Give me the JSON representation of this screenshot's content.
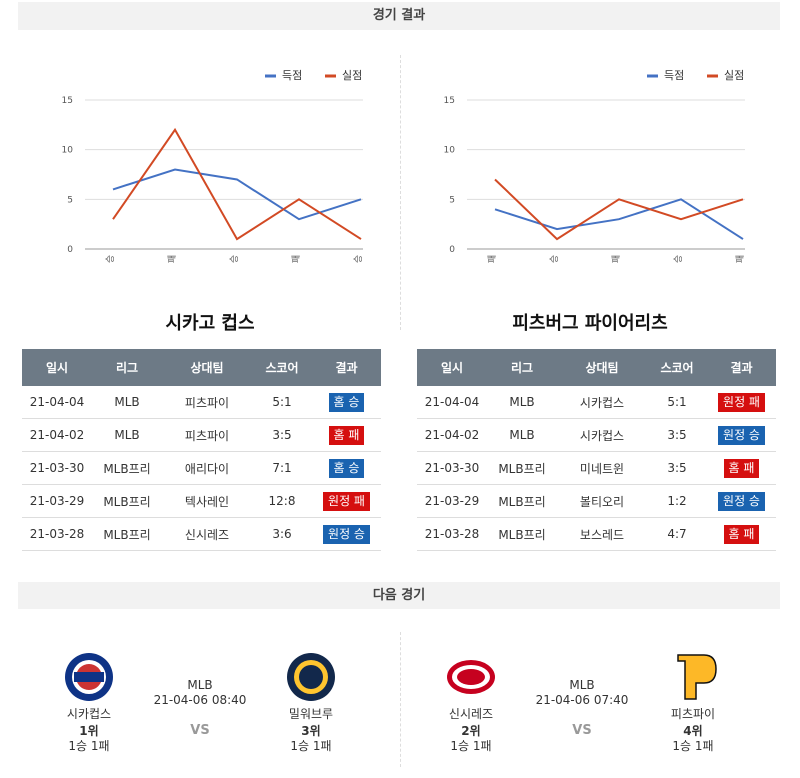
{
  "header": {
    "title": "경기 결과"
  },
  "chart_data": [
    {
      "type": "line",
      "categories": [
        "승",
        "패",
        "승",
        "패",
        "승"
      ],
      "series": [
        {
          "name": "득점",
          "color": "#4472c4",
          "values": [
            6,
            8,
            7,
            3,
            5
          ]
        },
        {
          "name": "실점",
          "color": "#d24a24",
          "values": [
            3,
            12,
            1,
            5,
            1
          ]
        }
      ],
      "ylim": [
        0,
        15
      ],
      "yticks": [
        0,
        5,
        10,
        15
      ],
      "grid": true,
      "legend": "top-right"
    },
    {
      "type": "line",
      "categories": [
        "패",
        "승",
        "패",
        "승",
        "패"
      ],
      "series": [
        {
          "name": "득점",
          "color": "#4472c4",
          "values": [
            4,
            2,
            3,
            5,
            1
          ]
        },
        {
          "name": "실점",
          "color": "#d24a24",
          "values": [
            7,
            1,
            5,
            3,
            5
          ]
        }
      ],
      "ylim": [
        0,
        15
      ],
      "yticks": [
        0,
        5,
        10,
        15
      ],
      "grid": true,
      "legend": "top-right"
    }
  ],
  "tables": [
    {
      "title": "시카고 컵스",
      "columns": [
        "일시",
        "리그",
        "상대팀",
        "스코어",
        "결과"
      ],
      "rows": [
        {
          "date": "21-04-04",
          "league": "MLB",
          "opponent": "피츠파이",
          "score": "5:1",
          "result": "홈 승",
          "result_color": "#1a63b0"
        },
        {
          "date": "21-04-02",
          "league": "MLB",
          "opponent": "피츠파이",
          "score": "3:5",
          "result": "홈 패",
          "result_color": "#d50f0f"
        },
        {
          "date": "21-03-30",
          "league": "MLB프리",
          "opponent": "애리다이",
          "score": "7:1",
          "result": "홈 승",
          "result_color": "#1a63b0"
        },
        {
          "date": "21-03-29",
          "league": "MLB프리",
          "opponent": "텍사레인",
          "score": "12:8",
          "result": "원정 패",
          "result_color": "#d50f0f"
        },
        {
          "date": "21-03-28",
          "league": "MLB프리",
          "opponent": "신시레즈",
          "score": "3:6",
          "result": "원정 승",
          "result_color": "#1a63b0"
        }
      ]
    },
    {
      "title": "피츠버그 파이어리츠",
      "columns": [
        "일시",
        "리그",
        "상대팀",
        "스코어",
        "결과"
      ],
      "rows": [
        {
          "date": "21-04-04",
          "league": "MLB",
          "opponent": "시카컵스",
          "score": "5:1",
          "result": "원정 패",
          "result_color": "#d50f0f"
        },
        {
          "date": "21-04-02",
          "league": "MLB",
          "opponent": "시카컵스",
          "score": "3:5",
          "result": "원정 승",
          "result_color": "#1a63b0"
        },
        {
          "date": "21-03-30",
          "league": "MLB프리",
          "opponent": "미네트윈",
          "score": "3:5",
          "result": "홈 패",
          "result_color": "#d50f0f"
        },
        {
          "date": "21-03-29",
          "league": "MLB프리",
          "opponent": "볼티오리",
          "score": "1:2",
          "result": "원정 승",
          "result_color": "#1a63b0"
        },
        {
          "date": "21-03-28",
          "league": "MLB프리",
          "opponent": "보스레드",
          "score": "4:7",
          "result": "홈 패",
          "result_color": "#d50f0f"
        }
      ]
    }
  ],
  "next": {
    "title": "다음 경기",
    "games": [
      {
        "league": "MLB",
        "datetime": "21-04-06 08:40",
        "vs": "VS",
        "home": {
          "name": "시카컵스",
          "rank": "1위",
          "record": "1승 1패"
        },
        "away": {
          "name": "밀워브루",
          "rank": "3위",
          "record": "1승 1패"
        }
      },
      {
        "league": "MLB",
        "datetime": "21-04-06 07:40",
        "vs": "VS",
        "home": {
          "name": "신시레즈",
          "rank": "2위",
          "record": "1승 1패"
        },
        "away": {
          "name": "피츠파이",
          "rank": "4위",
          "record": "1승 1패"
        }
      }
    ]
  }
}
